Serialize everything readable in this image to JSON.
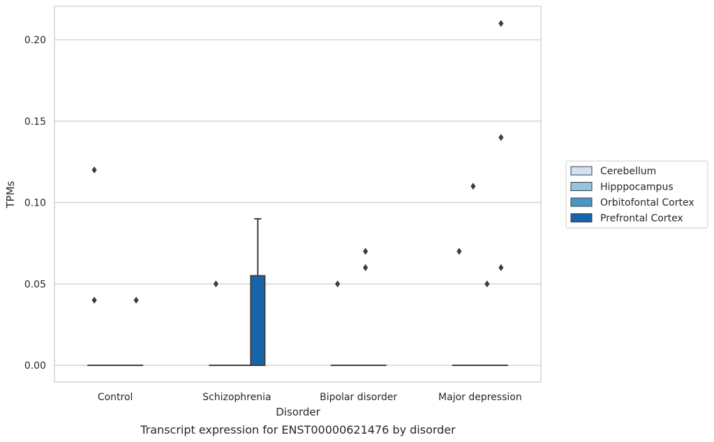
{
  "chart_data": {
    "type": "box",
    "title": "",
    "caption": "Transcript expression for ENST00000621476 by disorder",
    "xlabel": "Disorder",
    "ylabel": "TPMs",
    "ylim": [
      -0.01,
      0.22
    ],
    "yticks": [
      "0.00",
      "0.05",
      "0.10",
      "0.15",
      "0.20"
    ],
    "grid": "horizontal",
    "legend_placement": "right",
    "categories": [
      "Control",
      "Schizophrenia",
      "Bipolar disorder",
      "Major depression"
    ],
    "series": [
      {
        "name": "Cerebellum",
        "color": "#d0e1f2",
        "boxes": [
          {
            "category": "Control",
            "q1": 0,
            "median": 0,
            "q3": 0,
            "whisker_low": 0,
            "whisker_high": 0,
            "outliers": [
              0.12,
              0.04
            ]
          },
          {
            "category": "Schizophrenia",
            "q1": 0,
            "median": 0,
            "q3": 0,
            "whisker_low": 0,
            "whisker_high": 0,
            "outliers": [
              0.05
            ]
          },
          {
            "category": "Bipolar disorder",
            "q1": 0,
            "median": 0,
            "q3": 0,
            "whisker_low": 0,
            "whisker_high": 0,
            "outliers": [
              0.05
            ]
          },
          {
            "category": "Major depression",
            "q1": 0,
            "median": 0,
            "q3": 0,
            "whisker_low": 0,
            "whisker_high": 0,
            "outliers": [
              0.07
            ]
          }
        ]
      },
      {
        "name": "Hipppocampus",
        "color": "#94c4df",
        "boxes": [
          {
            "category": "Control",
            "q1": 0,
            "median": 0,
            "q3": 0,
            "whisker_low": 0,
            "whisker_high": 0,
            "outliers": []
          },
          {
            "category": "Schizophrenia",
            "q1": 0,
            "median": 0,
            "q3": 0,
            "whisker_low": 0,
            "whisker_high": 0,
            "outliers": []
          },
          {
            "category": "Bipolar disorder",
            "q1": 0,
            "median": 0,
            "q3": 0,
            "whisker_low": 0,
            "whisker_high": 0,
            "outliers": []
          },
          {
            "category": "Major depression",
            "q1": 0,
            "median": 0,
            "q3": 0,
            "whisker_low": 0,
            "whisker_high": 0,
            "outliers": [
              0.11
            ]
          }
        ]
      },
      {
        "name": "Orbitofontal Cortex",
        "color": "#4a98c9",
        "boxes": [
          {
            "category": "Control",
            "q1": 0,
            "median": 0,
            "q3": 0,
            "whisker_low": 0,
            "whisker_high": 0,
            "outliers": []
          },
          {
            "category": "Schizophrenia",
            "q1": 0,
            "median": 0,
            "q3": 0,
            "whisker_low": 0,
            "whisker_high": 0,
            "outliers": []
          },
          {
            "category": "Bipolar disorder",
            "q1": 0,
            "median": 0,
            "q3": 0,
            "whisker_low": 0,
            "whisker_high": 0,
            "outliers": [
              0.07,
              0.06
            ]
          },
          {
            "category": "Major depression",
            "q1": 0,
            "median": 0,
            "q3": 0,
            "whisker_low": 0,
            "whisker_high": 0,
            "outliers": [
              0.05
            ]
          }
        ]
      },
      {
        "name": "Prefrontal Cortex",
        "color": "#1764ab",
        "boxes": [
          {
            "category": "Control",
            "q1": 0,
            "median": 0,
            "q3": 0,
            "whisker_low": 0,
            "whisker_high": 0,
            "outliers": [
              0.04
            ]
          },
          {
            "category": "Schizophrenia",
            "q1": 0,
            "median": 0,
            "q3": 0.055,
            "whisker_low": 0,
            "whisker_high": 0.09,
            "outliers": []
          },
          {
            "category": "Bipolar disorder",
            "q1": 0,
            "median": 0,
            "q3": 0,
            "whisker_low": 0,
            "whisker_high": 0,
            "outliers": []
          },
          {
            "category": "Major depression",
            "q1": 0,
            "median": 0,
            "q3": 0,
            "whisker_low": 0,
            "whisker_high": 0,
            "outliers": [
              0.21,
              0.14,
              0.06
            ]
          }
        ]
      }
    ]
  }
}
